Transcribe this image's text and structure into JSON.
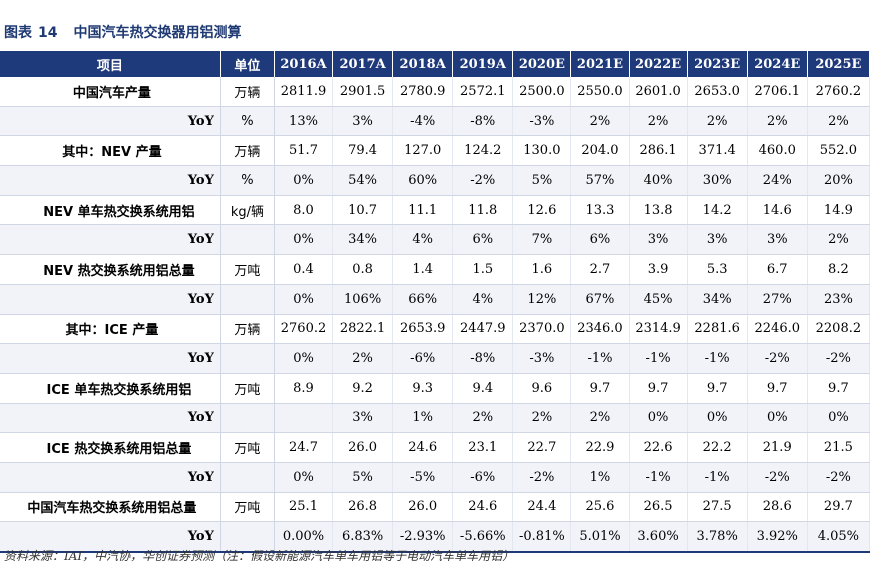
{
  "caption": {
    "label": "图表",
    "number": "14",
    "title": "中国汽车热交换器用铝测算"
  },
  "table": {
    "headers": [
      "项目",
      "单位",
      "2016A",
      "2017A",
      "2018A",
      "2019A",
      "2020E",
      "2021E",
      "2022E",
      "2023E",
      "2024E",
      "2025E"
    ],
    "rows": [
      {
        "item": "中国汽车产量",
        "unit": "万辆",
        "values": [
          "2811.9",
          "2901.5",
          "2780.9",
          "2572.1",
          "2500.0",
          "2550.0",
          "2601.0",
          "2653.0",
          "2706.1",
          "2760.2"
        ]
      },
      {
        "item": "YoY",
        "unit": "%",
        "values": [
          "13%",
          "3%",
          "-4%",
          "-8%",
          "-3%",
          "2%",
          "2%",
          "2%",
          "2%",
          "2%"
        ]
      },
      {
        "item": "其中：NEV 产量",
        "unit": "万辆",
        "values": [
          "51.7",
          "79.4",
          "127.0",
          "124.2",
          "130.0",
          "204.0",
          "286.1",
          "371.4",
          "460.0",
          "552.0"
        ]
      },
      {
        "item": "YoY",
        "unit": "%",
        "values": [
          "0%",
          "54%",
          "60%",
          "-2%",
          "5%",
          "57%",
          "40%",
          "30%",
          "24%",
          "20%"
        ]
      },
      {
        "item": "NEV 单车热交换系统用铝",
        "unit": "kg/辆",
        "values": [
          "8.0",
          "10.7",
          "11.1",
          "11.8",
          "12.6",
          "13.3",
          "13.8",
          "14.2",
          "14.6",
          "14.9"
        ]
      },
      {
        "item": "YoY",
        "unit": "",
        "values": [
          "0%",
          "34%",
          "4%",
          "6%",
          "7%",
          "6%",
          "3%",
          "3%",
          "3%",
          "2%"
        ]
      },
      {
        "item": "NEV 热交换系统用铝总量",
        "unit": "万吨",
        "values": [
          "0.4",
          "0.8",
          "1.4",
          "1.5",
          "1.6",
          "2.7",
          "3.9",
          "5.3",
          "6.7",
          "8.2"
        ]
      },
      {
        "item": "YoY",
        "unit": "",
        "values": [
          "0%",
          "106%",
          "66%",
          "4%",
          "12%",
          "67%",
          "45%",
          "34%",
          "27%",
          "23%"
        ]
      },
      {
        "item": "其中：ICE 产量",
        "unit": "万辆",
        "values": [
          "2760.2",
          "2822.1",
          "2653.9",
          "2447.9",
          "2370.0",
          "2346.0",
          "2314.9",
          "2281.6",
          "2246.0",
          "2208.2"
        ]
      },
      {
        "item": "YoY",
        "unit": "",
        "values": [
          "0%",
          "2%",
          "-6%",
          "-8%",
          "-3%",
          "-1%",
          "-1%",
          "-1%",
          "-2%",
          "-2%"
        ]
      },
      {
        "item": "ICE 单车热交换系统用铝",
        "unit": "万吨",
        "values": [
          "8.9",
          "9.2",
          "9.3",
          "9.4",
          "9.6",
          "9.7",
          "9.7",
          "9.7",
          "9.7",
          "9.7"
        ]
      },
      {
        "item": "YoY",
        "unit": "",
        "values": [
          "",
          "3%",
          "1%",
          "2%",
          "2%",
          "2%",
          "0%",
          "0%",
          "0%",
          "0%"
        ]
      },
      {
        "item": "ICE 热交换系统用铝总量",
        "unit": "万吨",
        "values": [
          "24.7",
          "26.0",
          "24.6",
          "23.1",
          "22.7",
          "22.9",
          "22.6",
          "22.2",
          "21.9",
          "21.5"
        ]
      },
      {
        "item": "YoY",
        "unit": "",
        "values": [
          "0%",
          "5%",
          "-5%",
          "-6%",
          "-2%",
          "1%",
          "-1%",
          "-1%",
          "-2%",
          "-2%"
        ]
      },
      {
        "item": "中国汽车热交换系统用铝总量",
        "unit": "万吨",
        "values": [
          "25.1",
          "26.8",
          "26.0",
          "24.6",
          "24.4",
          "25.6",
          "26.5",
          "27.5",
          "28.6",
          "29.7"
        ]
      },
      {
        "item": "YoY",
        "unit": "",
        "values": [
          "0.00%",
          "6.83%",
          "-2.93%",
          "-5.66%",
          "-0.81%",
          "5.01%",
          "3.60%",
          "3.78%",
          "3.92%",
          "4.05%"
        ]
      }
    ]
  },
  "footnote": "资料来源：IAI，中汽协，华创证券预测（注：假设新能源汽车单车用铝等于电动汽车单车用铝）",
  "colors": {
    "header_bg": "#1f3a7a",
    "caption": "#1f3a73",
    "stripe": "#f1f3f8"
  }
}
